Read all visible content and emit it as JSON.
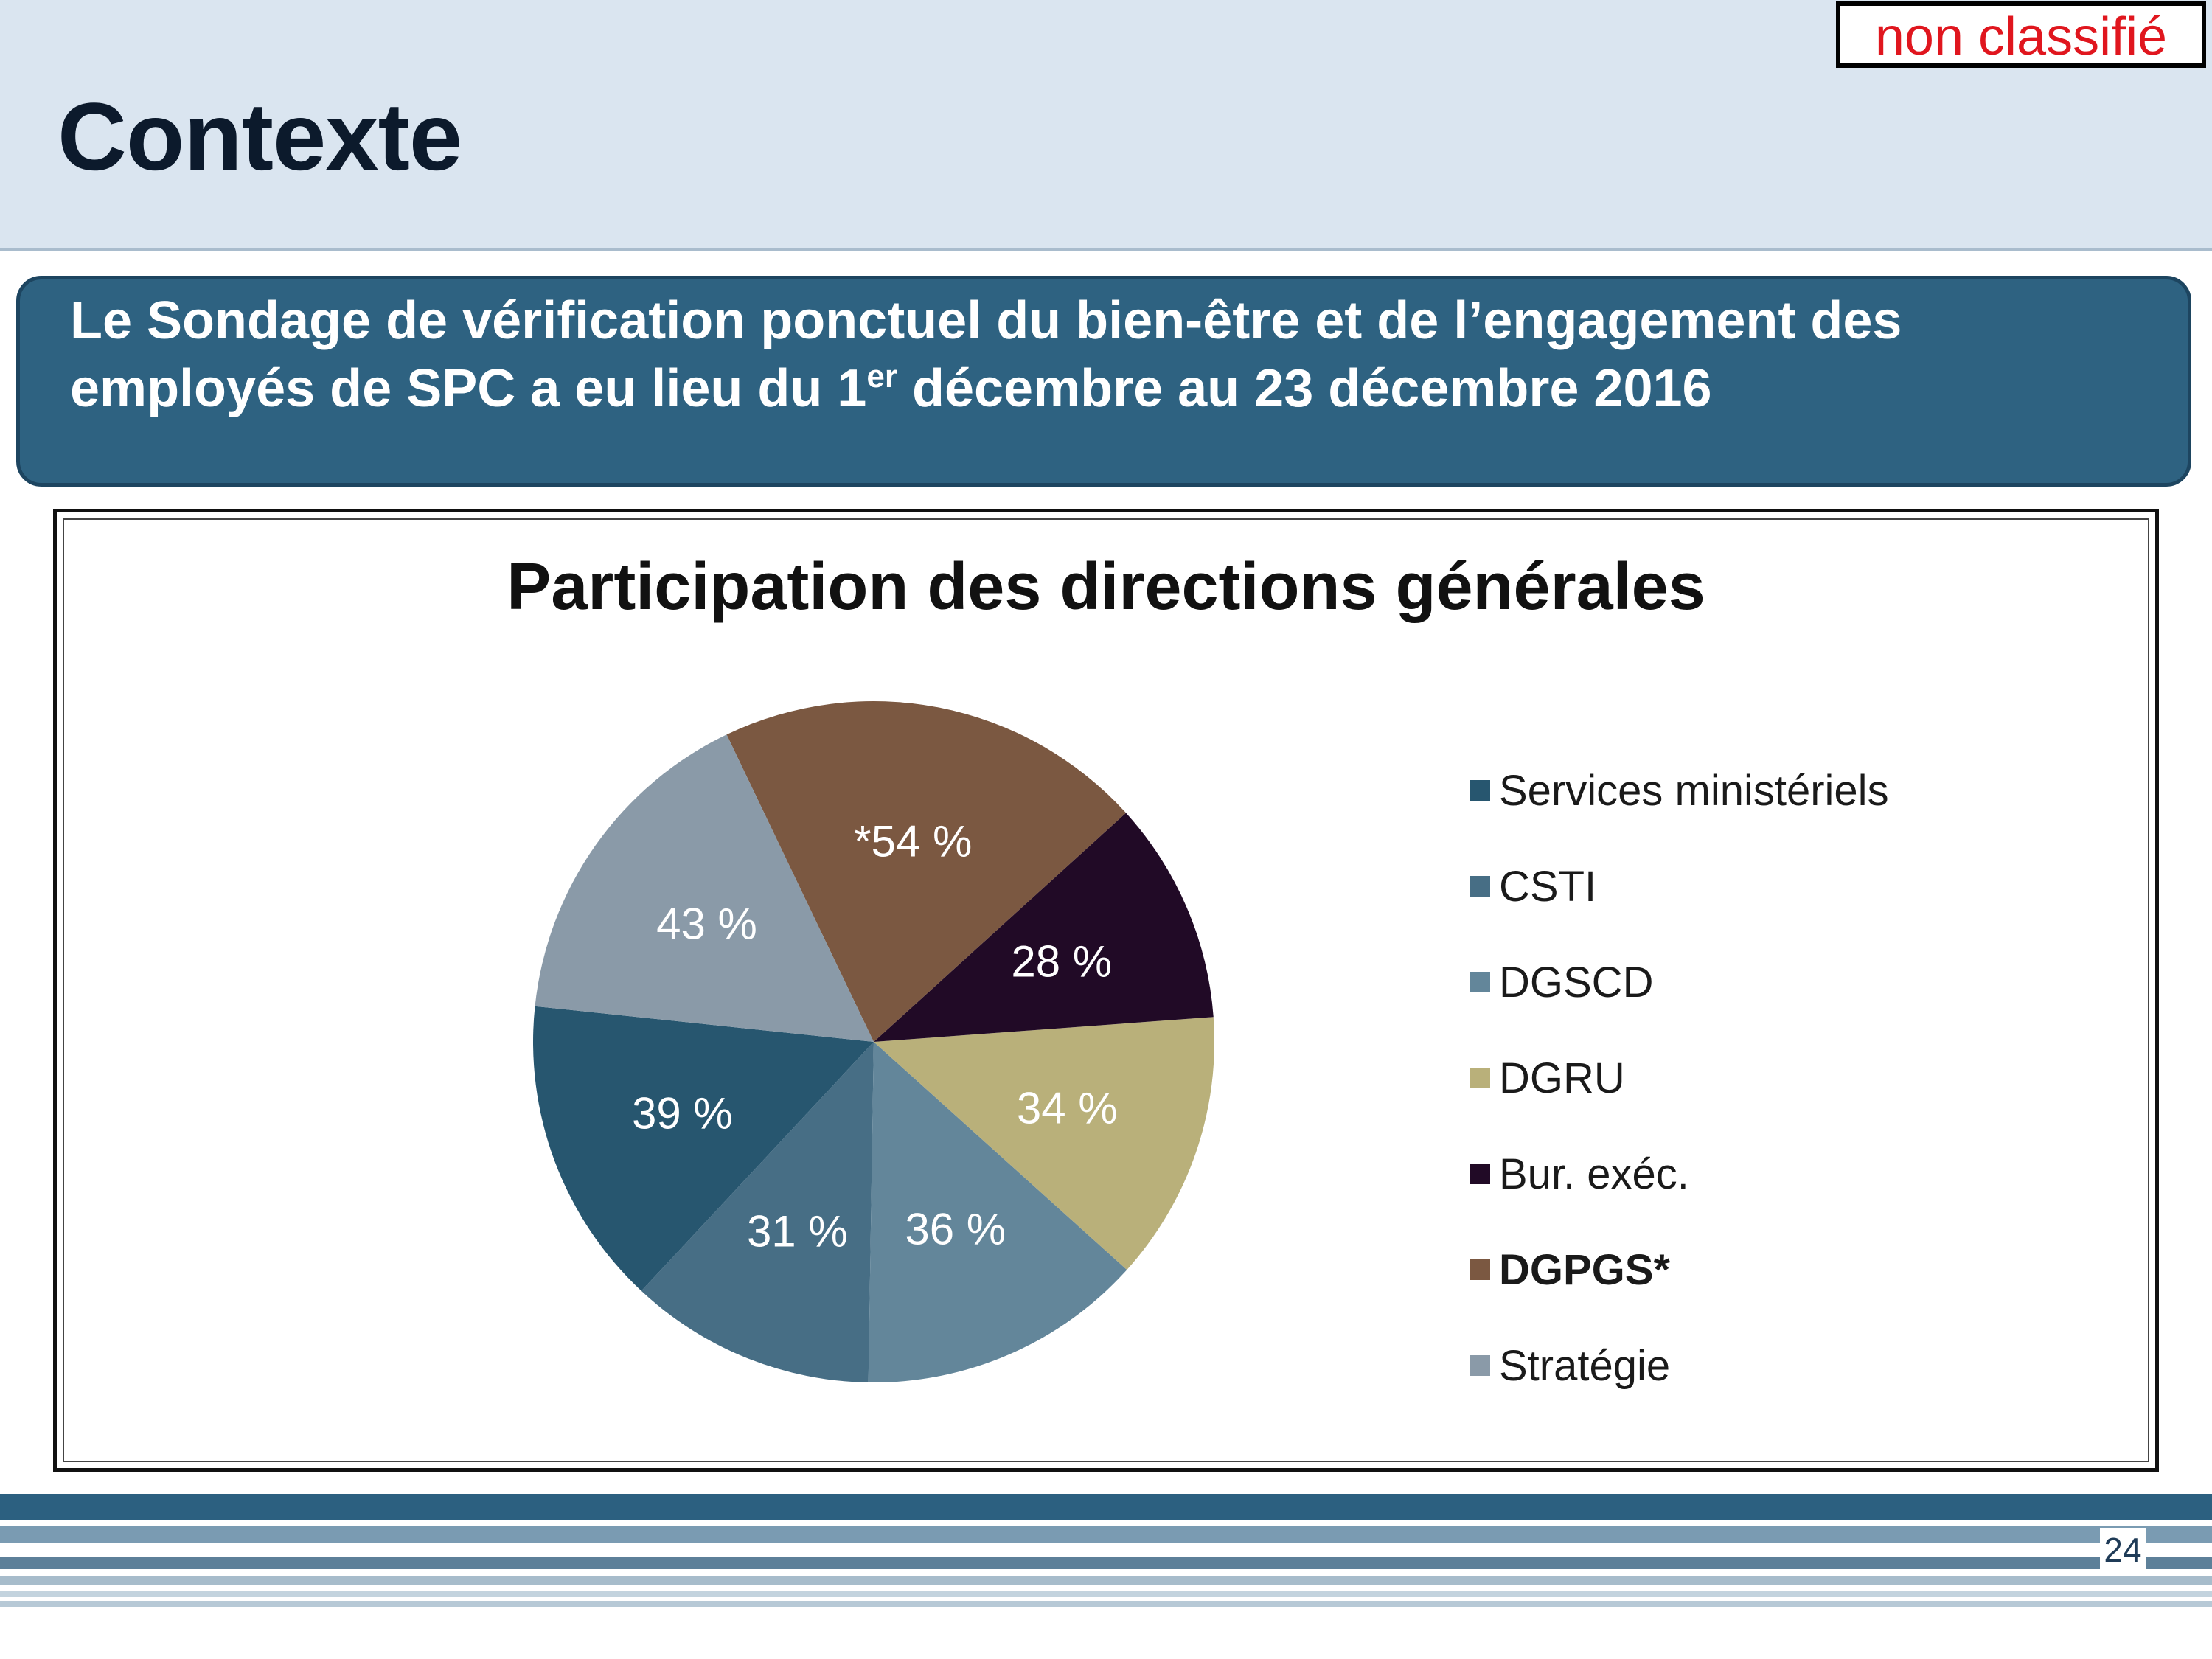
{
  "header": {
    "title": "Contexte",
    "classification": "non classifié"
  },
  "banner": {
    "line1": "Le Sondage de vérification ponctuel du bien-être et de l’engagement des",
    "line2_before": "employés de SPC a eu lieu du 1",
    "line2_sup": "er",
    "line2_after": " décembre au 23 décembre 2016"
  },
  "footer": {
    "page_number": "24"
  },
  "chart_data": {
    "type": "pie",
    "title": "Participation des directions générales",
    "slices": [
      {
        "label": "Services ministériels",
        "value": 39,
        "display": "39 %",
        "color": "#27566f",
        "bold": false
      },
      {
        "label": "CSTI",
        "value": 31,
        "display": "31 %",
        "color": "#476e85",
        "bold": false
      },
      {
        "label": "DGSCD",
        "value": 36,
        "display": "36 %",
        "color": "#63869a",
        "bold": false
      },
      {
        "label": "DGRU",
        "value": 34,
        "display": "34 %",
        "color": "#b9b07a",
        "bold": false
      },
      {
        "label": "Bur. exéc.",
        "value": 28,
        "display": "28 %",
        "color": "#210a26",
        "bold": false
      },
      {
        "label": "DGPGS*",
        "value": 54,
        "display": "*54 %",
        "color": "#7b5841",
        "bold": true
      },
      {
        "label": "Stratégie",
        "value": 43,
        "display": "43 %",
        "color": "#8a9aa8",
        "bold": false
      }
    ],
    "data_label_color": "#ffffff",
    "legend_position": "right"
  }
}
